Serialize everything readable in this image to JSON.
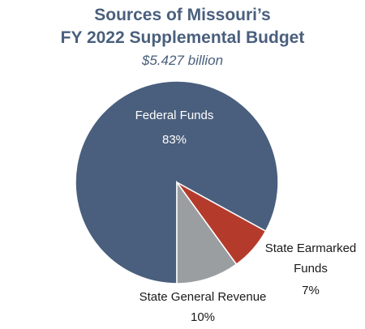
{
  "chart_data": {
    "type": "pie",
    "title_line1": "Sources of Missouri’s",
    "title_line2": "FY 2022 Supplemental Budget",
    "subtitle": "$5.427 billion",
    "slices": [
      {
        "label": "Federal Funds",
        "value": 83,
        "value_label": "83%",
        "color": "#4a5f7d"
      },
      {
        "label": "State Earmarked Funds",
        "label_line1": "State Earmarked",
        "label_line2": "Funds",
        "value": 7,
        "value_label": "7%",
        "color": "#b43b2c"
      },
      {
        "label": "State General Revenue",
        "value": 10,
        "value_label": "10%",
        "color": "#9b9ea1"
      }
    ]
  }
}
